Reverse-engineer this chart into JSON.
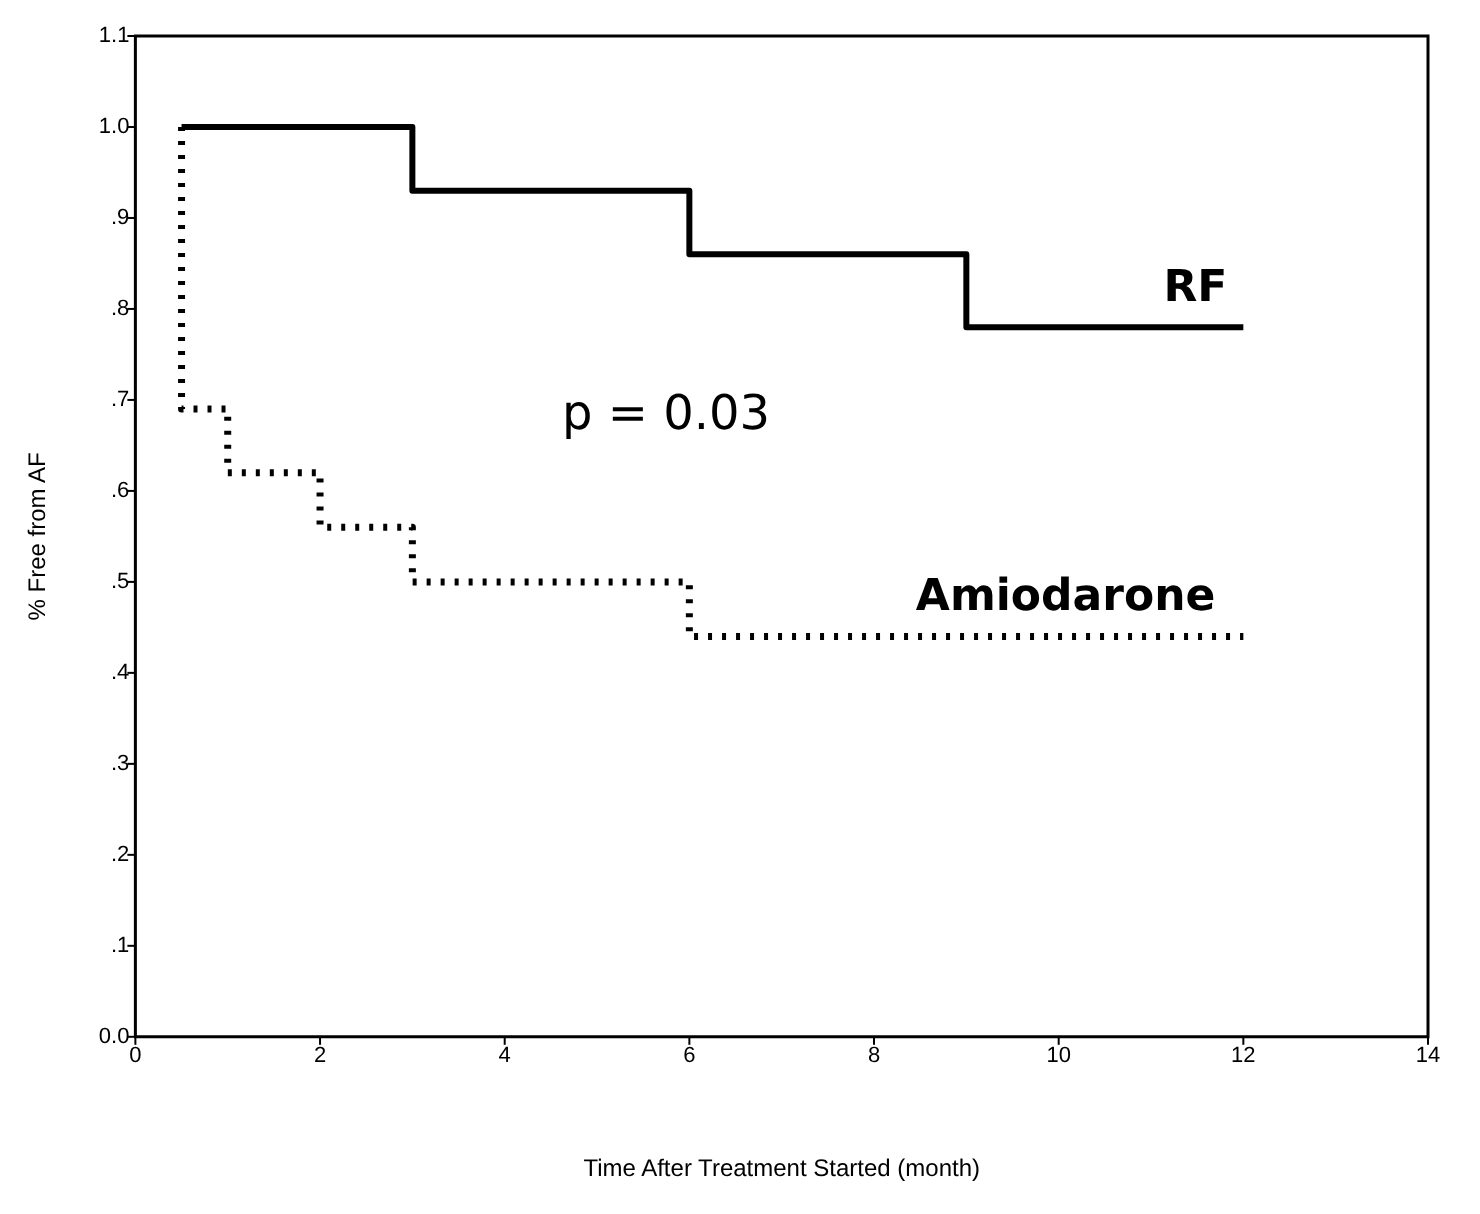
{
  "chart_data": {
    "type": "step",
    "xlabel": "Time After Treatment Started (month)",
    "ylabel": "% Free from AF",
    "series": [
      {
        "name": "RF",
        "color": "#000000",
        "line_style": "solid",
        "x": [
          0.5,
          3,
          6,
          9,
          12
        ],
        "values": [
          1,
          0.93,
          0.86,
          0.78,
          0.78
        ]
      },
      {
        "name": "Amiodarone",
        "color": "#000000",
        "line_style": "dotted",
        "x": [
          0.5,
          0.5,
          1,
          2,
          3,
          6,
          12
        ],
        "values": [
          1,
          0.69,
          0.62,
          0.56,
          0.5,
          0.44,
          0.44
        ]
      }
    ],
    "annotations": [
      "p = 0.03"
    ],
    "xlim": [
      0,
      14
    ],
    "xticks": [
      0,
      2,
      4,
      6,
      8,
      10,
      12,
      14
    ],
    "ylim": [
      0,
      1.1
    ],
    "yticks": [
      {
        "value": 0,
        "label": "0.0"
      },
      {
        "value": 0.1,
        "label": ".1"
      },
      {
        "value": 0.2,
        "label": ".2"
      },
      {
        "value": 0.3,
        "label": ".3"
      },
      {
        "value": 0.4,
        "label": ".4"
      },
      {
        "value": 0.5,
        "label": ".5"
      },
      {
        "value": 0.6,
        "label": ".6"
      },
      {
        "value": 0.7,
        "label": ".7"
      },
      {
        "value": 0.8,
        "label": ".8"
      },
      {
        "value": 0.9,
        "label": ".9"
      },
      {
        "value": 1.0,
        "label": "1.0"
      },
      {
        "value": 1.1,
        "label": "1.1"
      }
    ],
    "grid": false,
    "legend": false,
    "marker": "none"
  }
}
